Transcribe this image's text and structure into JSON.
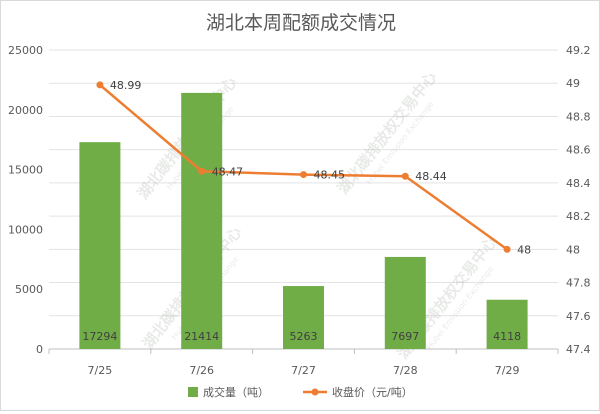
{
  "chart_data": {
    "type": "bar",
    "title": "湖北本周配额成交情况",
    "categories": [
      "7/25",
      "7/26",
      "7/27",
      "7/28",
      "7/29"
    ],
    "series": [
      {
        "name": "成交量（吨）",
        "type": "bar",
        "axis": "left",
        "values": [
          17294,
          21414,
          5263,
          7697,
          4118
        ],
        "color": "#70ad47"
      },
      {
        "name": "收盘价（元/吨）",
        "type": "line",
        "axis": "right",
        "values": [
          48.99,
          48.47,
          48.45,
          48.44,
          48
        ],
        "color": "#ed7d31"
      }
    ],
    "y_left": {
      "min": 0,
      "max": 25000,
      "step": 5000,
      "ticks": [
        "0",
        "5000",
        "10000",
        "15000",
        "20000",
        "25000"
      ]
    },
    "y_right": {
      "min": 47.4,
      "max": 49.2,
      "step": 0.2,
      "ticks": [
        "47.4",
        "47.6",
        "47.8",
        "48",
        "48.2",
        "48.4",
        "48.6",
        "48.8",
        "49",
        "49.2"
      ]
    },
    "grid": true,
    "legend_position": "bottom",
    "bar_labels": [
      "17294",
      "21414",
      "5263",
      "7697",
      "4118"
    ],
    "line_labels": [
      "48.99",
      "48.47",
      "48.45",
      "48.44",
      "48"
    ]
  },
  "watermark": {
    "text": "湖北碳排放权交易中心",
    "subtext": "Hubei Emission Exchange"
  }
}
